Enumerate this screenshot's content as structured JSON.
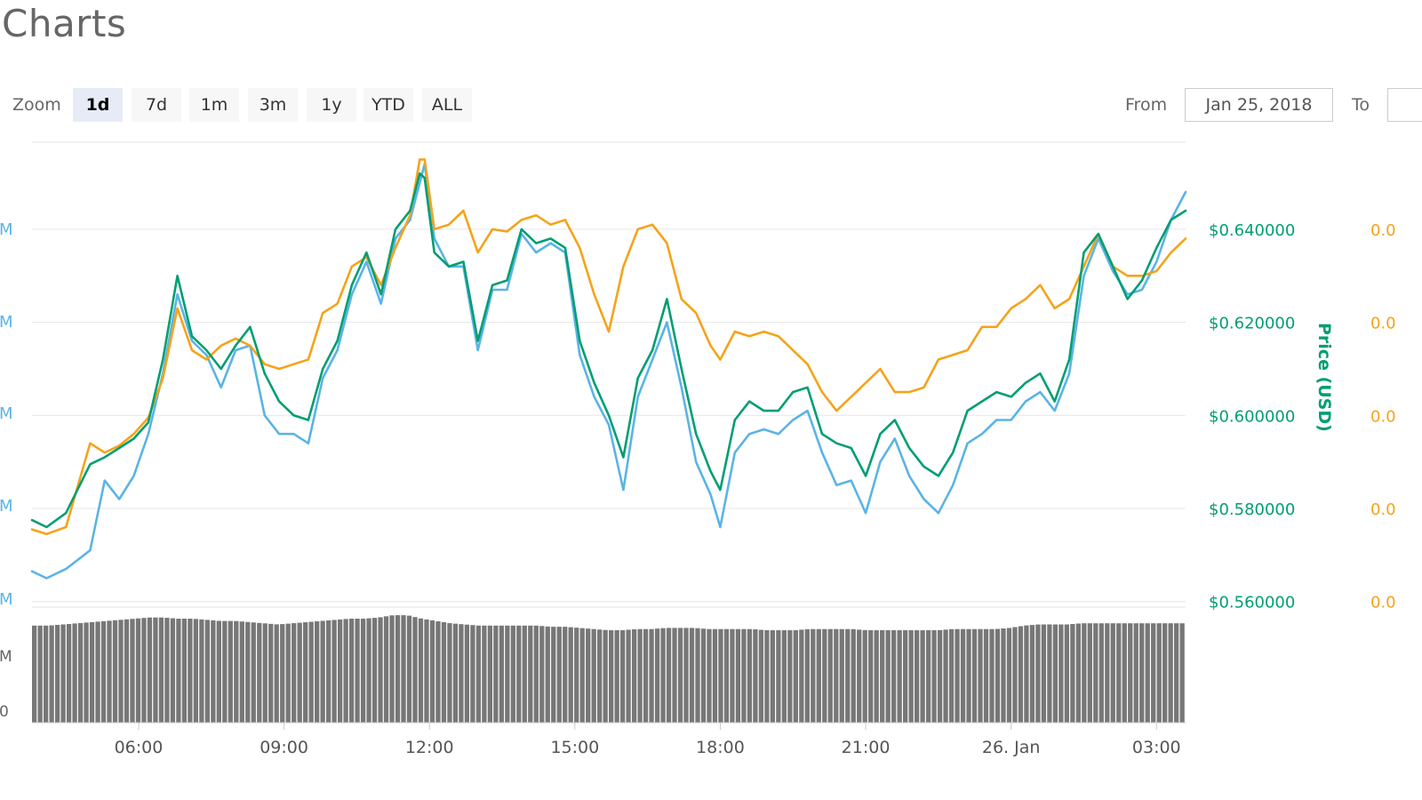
{
  "page": {
    "title": "Charts"
  },
  "controls": {
    "zoom_label": "Zoom",
    "zoom_options": [
      "1d",
      "7d",
      "1m",
      "3m",
      "1y",
      "YTD",
      "ALL"
    ],
    "active_zoom": "1d",
    "from_label": "From",
    "from_value": "Jan 25, 2018",
    "to_label": "To",
    "to_value": ""
  },
  "colors": {
    "price_usd": "#009e73",
    "market_cap": "#5ab4e5",
    "price_btc": "#f5a31a",
    "volume": "#777777",
    "grid": "#e6e6e6"
  },
  "chart_data": {
    "type": "line",
    "x_ticks": [
      "06:00",
      "09:00",
      "12:00",
      "15:00",
      "18:00",
      "21:00",
      "26. Jan",
      "03:00"
    ],
    "x_tick_hours": [
      6,
      9,
      12,
      15,
      18,
      21,
      24,
      27
    ],
    "x_range_hours": [
      3.8,
      27.6
    ],
    "left_axis": {
      "tick_labels": [
        "M",
        "M",
        "M",
        "M",
        "M",
        "M"
      ],
      "color": "#5ab4e5"
    },
    "right_axis_usd": {
      "title": "Price (USD)",
      "tick_labels": [
        "$0.640000",
        "$0.620000",
        "$0.600000",
        "$0.580000",
        "$0.560000"
      ],
      "ticks": [
        0.64,
        0.62,
        0.6,
        0.58,
        0.56
      ],
      "range": [
        0.5588,
        0.6587
      ]
    },
    "right_axis_btc": {
      "tick_labels": [
        "0.0",
        "0.0",
        "0.0",
        "0.0",
        "0.0"
      ]
    },
    "volume_axis": {
      "tick_labels": [
        "M",
        "0"
      ]
    },
    "series": [
      {
        "key": "market_cap",
        "color": "#5ab4e5",
        "x": [
          3.8,
          4.1,
          4.5,
          5.0,
          5.3,
          5.6,
          5.9,
          6.2,
          6.5,
          6.8,
          7.1,
          7.4,
          7.7,
          8.0,
          8.3,
          8.6,
          8.9,
          9.2,
          9.5,
          9.8,
          10.1,
          10.4,
          10.7,
          11.0,
          11.3,
          11.6,
          11.8,
          11.9,
          12.1,
          12.4,
          12.7,
          13.0,
          13.3,
          13.6,
          13.9,
          14.2,
          14.5,
          14.8,
          15.1,
          15.4,
          15.7,
          16.0,
          16.3,
          16.6,
          16.9,
          17.2,
          17.5,
          17.8,
          18.0,
          18.3,
          18.6,
          18.9,
          19.2,
          19.5,
          19.8,
          20.1,
          20.4,
          20.7,
          21.0,
          21.3,
          21.6,
          21.9,
          22.2,
          22.5,
          22.8,
          23.1,
          23.4,
          23.7,
          24.0,
          24.3,
          24.6,
          24.9,
          25.2,
          25.5,
          25.8,
          26.1,
          26.4,
          26.7,
          27.0,
          27.3,
          27.6
        ],
        "values": [
          0.5665,
          0.565,
          0.567,
          0.571,
          0.586,
          0.582,
          0.587,
          0.596,
          0.609,
          0.626,
          0.616,
          0.613,
          0.606,
          0.614,
          0.615,
          0.6,
          0.596,
          0.596,
          0.594,
          0.608,
          0.614,
          0.626,
          0.633,
          0.624,
          0.638,
          0.642,
          0.65,
          0.654,
          0.638,
          0.632,
          0.632,
          0.614,
          0.627,
          0.627,
          0.639,
          0.635,
          0.637,
          0.635,
          0.613,
          0.604,
          0.598,
          0.584,
          0.604,
          0.612,
          0.62,
          0.606,
          0.59,
          0.583,
          0.576,
          0.592,
          0.596,
          0.597,
          0.596,
          0.599,
          0.601,
          0.592,
          0.585,
          0.586,
          0.579,
          0.59,
          0.595,
          0.587,
          0.582,
          0.579,
          0.585,
          0.594,
          0.596,
          0.599,
          0.599,
          0.603,
          0.605,
          0.601,
          0.609,
          0.63,
          0.638,
          0.631,
          0.626,
          0.627,
          0.633,
          0.642,
          0.648
        ]
      },
      {
        "key": "price_btc",
        "color": "#f5a31a",
        "x": [
          3.8,
          4.1,
          4.5,
          5.0,
          5.3,
          5.6,
          5.9,
          6.2,
          6.5,
          6.8,
          7.1,
          7.4,
          7.7,
          8.0,
          8.3,
          8.6,
          8.9,
          9.2,
          9.5,
          9.8,
          10.1,
          10.4,
          10.7,
          11.0,
          11.3,
          11.6,
          11.8,
          11.9,
          12.1,
          12.4,
          12.7,
          13.0,
          13.3,
          13.6,
          13.9,
          14.2,
          14.5,
          14.8,
          15.1,
          15.4,
          15.7,
          16.0,
          16.3,
          16.6,
          16.9,
          17.2,
          17.5,
          17.8,
          18.0,
          18.3,
          18.6,
          18.9,
          19.2,
          19.5,
          19.8,
          20.1,
          20.4,
          20.7,
          21.0,
          21.3,
          21.6,
          21.9,
          22.2,
          22.5,
          22.8,
          23.1,
          23.4,
          23.7,
          24.0,
          24.3,
          24.6,
          24.9,
          25.2,
          25.5,
          25.8,
          26.1,
          26.4,
          26.7,
          27.0,
          27.3,
          27.6
        ],
        "values": [
          0.5755,
          0.5745,
          0.576,
          0.594,
          0.592,
          0.5935,
          0.596,
          0.5995,
          0.608,
          0.623,
          0.614,
          0.612,
          0.615,
          0.6165,
          0.615,
          0.611,
          0.61,
          0.611,
          0.612,
          0.622,
          0.624,
          0.632,
          0.634,
          0.628,
          0.636,
          0.643,
          0.655,
          0.655,
          0.64,
          0.641,
          0.644,
          0.635,
          0.64,
          0.6395,
          0.642,
          0.643,
          0.641,
          0.642,
          0.636,
          0.626,
          0.618,
          0.632,
          0.64,
          0.641,
          0.637,
          0.625,
          0.622,
          0.615,
          0.612,
          0.618,
          0.617,
          0.618,
          0.617,
          0.614,
          0.611,
          0.605,
          0.601,
          0.604,
          0.607,
          0.61,
          0.605,
          0.605,
          0.606,
          0.612,
          0.613,
          0.614,
          0.619,
          0.619,
          0.623,
          0.625,
          0.628,
          0.623,
          0.625,
          0.632,
          0.639,
          0.632,
          0.63,
          0.63,
          0.631,
          0.635,
          0.638
        ]
      },
      {
        "key": "price_usd",
        "color": "#009e73",
        "x": [
          3.8,
          4.1,
          4.5,
          5.0,
          5.3,
          5.6,
          5.9,
          6.2,
          6.5,
          6.8,
          7.1,
          7.4,
          7.7,
          8.0,
          8.3,
          8.6,
          8.9,
          9.2,
          9.5,
          9.8,
          10.1,
          10.4,
          10.7,
          11.0,
          11.3,
          11.6,
          11.8,
          11.9,
          12.1,
          12.4,
          12.7,
          13.0,
          13.3,
          13.6,
          13.9,
          14.2,
          14.5,
          14.8,
          15.1,
          15.4,
          15.7,
          16.0,
          16.3,
          16.6,
          16.9,
          17.2,
          17.5,
          17.8,
          18.0,
          18.3,
          18.6,
          18.9,
          19.2,
          19.5,
          19.8,
          20.1,
          20.4,
          20.7,
          21.0,
          21.3,
          21.6,
          21.9,
          22.2,
          22.5,
          22.8,
          23.1,
          23.4,
          23.7,
          24.0,
          24.3,
          24.6,
          24.9,
          25.2,
          25.5,
          25.8,
          26.1,
          26.4,
          26.7,
          27.0,
          27.3,
          27.6
        ],
        "values": [
          0.5775,
          0.576,
          0.579,
          0.5895,
          0.591,
          0.593,
          0.595,
          0.5985,
          0.612,
          0.63,
          0.617,
          0.614,
          0.61,
          0.615,
          0.619,
          0.609,
          0.603,
          0.6,
          0.599,
          0.61,
          0.616,
          0.628,
          0.635,
          0.626,
          0.64,
          0.644,
          0.652,
          0.651,
          0.635,
          0.632,
          0.633,
          0.616,
          0.628,
          0.629,
          0.64,
          0.637,
          0.638,
          0.636,
          0.616,
          0.607,
          0.6,
          0.591,
          0.608,
          0.614,
          0.625,
          0.61,
          0.596,
          0.588,
          0.584,
          0.599,
          0.603,
          0.601,
          0.601,
          0.605,
          0.606,
          0.596,
          0.594,
          0.593,
          0.587,
          0.596,
          0.599,
          0.593,
          0.589,
          0.587,
          0.592,
          0.601,
          0.603,
          0.605,
          0.604,
          0.607,
          0.609,
          0.603,
          0.612,
          0.635,
          0.639,
          0.632,
          0.625,
          0.629,
          0.636,
          0.642,
          0.644
        ]
      }
    ],
    "volume": {
      "x_range_hours": [
        3.8,
        27.6
      ],
      "range": [
        0,
        1
      ],
      "values": [
        0.84,
        0.84,
        0.85,
        0.86,
        0.87,
        0.88,
        0.89,
        0.9,
        0.91,
        0.91,
        0.9,
        0.9,
        0.89,
        0.88,
        0.88,
        0.87,
        0.86,
        0.85,
        0.86,
        0.87,
        0.88,
        0.89,
        0.9,
        0.9,
        0.91,
        0.93,
        0.93,
        0.9,
        0.88,
        0.86,
        0.85,
        0.84,
        0.84,
        0.84,
        0.84,
        0.84,
        0.83,
        0.83,
        0.82,
        0.81,
        0.8,
        0.8,
        0.81,
        0.81,
        0.82,
        0.82,
        0.82,
        0.81,
        0.81,
        0.81,
        0.81,
        0.8,
        0.8,
        0.8,
        0.81,
        0.81,
        0.81,
        0.81,
        0.8,
        0.8,
        0.8,
        0.8,
        0.8,
        0.8,
        0.81,
        0.81,
        0.81,
        0.81,
        0.82,
        0.84,
        0.85,
        0.85,
        0.85,
        0.86,
        0.86,
        0.86,
        0.86,
        0.86,
        0.86,
        0.86,
        0.86
      ]
    }
  }
}
